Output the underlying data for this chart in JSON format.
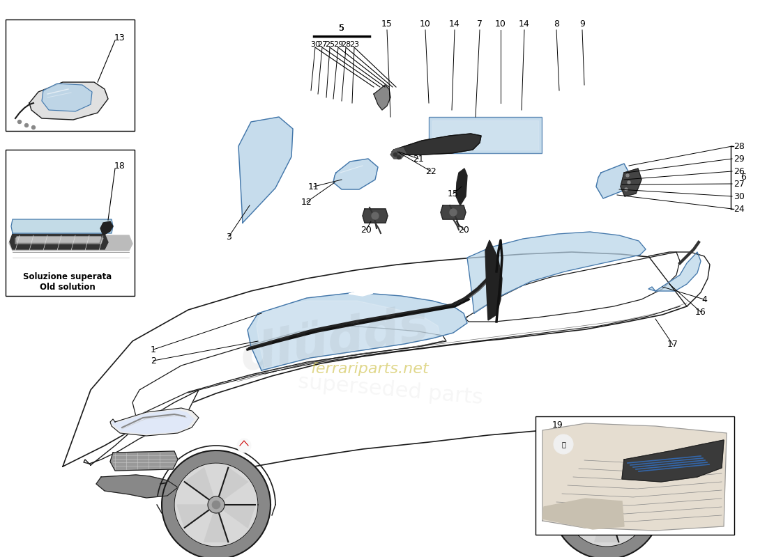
{
  "bg": "#ffffff",
  "blue": "#b8d4e8",
  "dark_blue": "#8ab0c8",
  "line_color": "#1a1a1a",
  "gray_light": "#d8d8d8",
  "gray_mid": "#aaaaaa",
  "gray_dark": "#555555",
  "label_fs": 9,
  "part5_nums": [
    "30",
    "27",
    "25",
    "29",
    "28",
    "23"
  ],
  "top_right_nums": [
    "15",
    "10",
    "14",
    "7",
    "10",
    "14",
    "8",
    "9"
  ],
  "right_bracket_nums": [
    "28",
    "29",
    "26",
    "27",
    "30",
    "24"
  ],
  "right_bracket_label": "6",
  "inset1_label": "13",
  "inset2_label": "18",
  "inset2_sub1": "Soluzione superata",
  "inset2_sub2": "Old solution",
  "inset3_label": "19",
  "watermark_color": "#c8b830",
  "watermark_text": "ferrariparts.net"
}
